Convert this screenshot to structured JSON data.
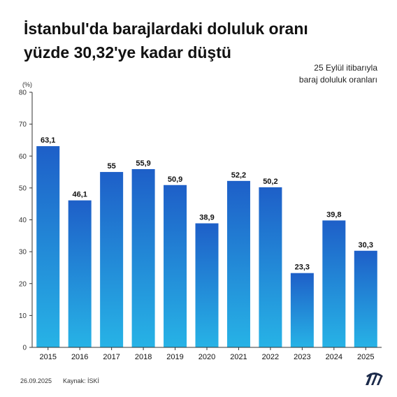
{
  "title_line1": "İstanbul'da barajlardaki doluluk oranı",
  "title_line2": "yüzde 30,32'ye kadar düştü",
  "note_line1": "25 Eylül itibarıyla",
  "note_line2": "baraj doluluk oranları",
  "unit": "(%)",
  "footer": {
    "date": "26.09.2025",
    "source": "Kaynak: İSKİ"
  },
  "logo": {
    "icon": "aa-logo-icon"
  },
  "colors": {
    "bar_top": "#1e5fc8",
    "bar_bottom": "#27b3e6",
    "axis": "#333333",
    "label": "#111111"
  },
  "chart_data": {
    "type": "bar",
    "categories": [
      "2015",
      "2016",
      "2017",
      "2018",
      "2019",
      "2020",
      "2021",
      "2022",
      "2023",
      "2024",
      "2025"
    ],
    "values": [
      63.1,
      46.1,
      55,
      55.9,
      50.9,
      38.9,
      52.2,
      50.2,
      23.3,
      39.8,
      30.3
    ],
    "value_labels": [
      "63,1",
      "46,1",
      "55",
      "55,9",
      "50,9",
      "38,9",
      "52,2",
      "50,2",
      "23,3",
      "39,8",
      "30,3"
    ],
    "yticks": [
      0,
      10,
      20,
      30,
      40,
      50,
      60,
      70,
      80
    ],
    "ylim": [
      0,
      80
    ],
    "ylabel": "(%)",
    "xlabel": "",
    "grid": false,
    "legend": "none"
  }
}
